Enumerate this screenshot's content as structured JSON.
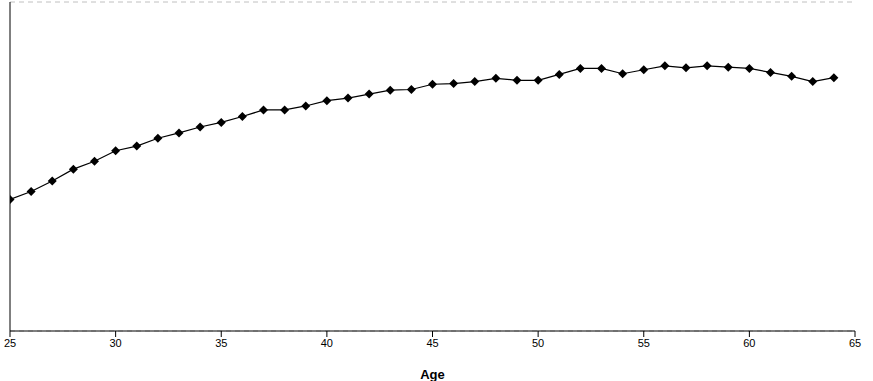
{
  "chart_data": {
    "type": "line",
    "x_label": "Age",
    "x": [
      25,
      26,
      27,
      28,
      29,
      30,
      31,
      32,
      33,
      34,
      35,
      36,
      37,
      38,
      39,
      40,
      41,
      42,
      43,
      44,
      45,
      46,
      47,
      48,
      49,
      50,
      51,
      52,
      53,
      54,
      55,
      56,
      57,
      58,
      59,
      60,
      61,
      62,
      63,
      64
    ],
    "values": [
      2.0,
      2.12,
      2.28,
      2.46,
      2.58,
      2.74,
      2.81,
      2.93,
      3.01,
      3.1,
      3.17,
      3.26,
      3.36,
      3.36,
      3.42,
      3.5,
      3.54,
      3.6,
      3.66,
      3.67,
      3.75,
      3.76,
      3.79,
      3.84,
      3.81,
      3.81,
      3.9,
      3.99,
      3.99,
      3.91,
      3.97,
      4.03,
      4.0,
      4.03,
      4.01,
      3.99,
      3.93,
      3.87,
      3.79,
      3.85
    ],
    "color": "#000000",
    "marker": "diamond",
    "line_style": "solid",
    "xlim": [
      25,
      65
    ],
    "xticks": [
      25,
      30,
      35,
      40,
      45,
      50,
      55,
      60,
      65
    ],
    "ylim": [
      0,
      5
    ],
    "yticks": [
      0,
      1,
      2,
      3,
      4
    ],
    "grid": true,
    "tick_labels": "x"
  }
}
